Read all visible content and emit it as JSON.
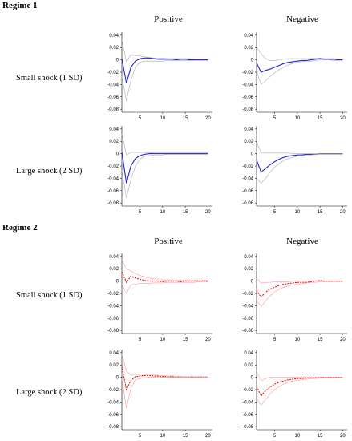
{
  "regimes": [
    {
      "label": "Regime 1"
    },
    {
      "label": "Regime 2"
    }
  ],
  "columns": [
    "Positive",
    "Negative"
  ],
  "rows": [
    "Small shock (1 SD)",
    "Large shock (2 SD)"
  ],
  "colors": {
    "regime1_line": "#2222dd",
    "regime2_line": "#ee1111",
    "band": "#aaaaaa",
    "regime2_band": "#ff9999"
  },
  "chart_data": [
    {
      "type": "line",
      "regime": "Regime 1",
      "shock": "Small shock (1 SD)",
      "column": "Positive",
      "x": [
        1,
        2,
        3,
        4,
        5,
        6,
        7,
        8,
        9,
        10,
        11,
        12,
        13,
        14,
        15,
        16,
        17,
        18,
        19,
        20
      ],
      "series": [
        {
          "values": [
            0.002,
            -0.038,
            -0.012,
            -0.002,
            0.002,
            0.003,
            0.003,
            0.002,
            0.001,
            0.001,
            0.001,
            0.001,
            0.0,
            0.001,
            0.001,
            0.0,
            0.0,
            0.0,
            0.0,
            0.0
          ]
        },
        {
          "values": [
            0.033,
            -0.003,
            0.008,
            0.007,
            0.006,
            0.005,
            0.004,
            0.003,
            0.003,
            0.003,
            0.002,
            0.002,
            0.002,
            0.002,
            0.002,
            0.002,
            0.001,
            0.001,
            0.001,
            0.001
          ]
        },
        {
          "values": [
            -0.027,
            -0.066,
            -0.033,
            -0.012,
            -0.004,
            -0.002,
            -0.002,
            -0.002,
            -0.002,
            -0.002,
            -0.001,
            -0.001,
            -0.001,
            -0.001,
            -0.001,
            -0.001,
            -0.001,
            -0.001,
            -0.001,
            -0.001
          ]
        }
      ],
      "xticks": [
        5,
        10,
        15,
        20
      ],
      "yticks": [
        0.04,
        0.02,
        0,
        -0.02,
        -0.04,
        -0.06,
        -0.08
      ],
      "xlim": [
        1,
        21
      ],
      "ylim": [
        -0.085,
        0.045
      ]
    },
    {
      "type": "line",
      "regime": "Regime 1",
      "shock": "Small shock (1 SD)",
      "column": "Negative",
      "x": [
        1,
        2,
        3,
        4,
        5,
        6,
        7,
        8,
        9,
        10,
        11,
        12,
        13,
        14,
        15,
        16,
        17,
        18,
        19,
        20
      ],
      "series": [
        {
          "values": [
            -0.005,
            -0.02,
            -0.017,
            -0.015,
            -0.012,
            -0.009,
            -0.006,
            -0.004,
            -0.003,
            -0.002,
            -0.001,
            -0.001,
            0.0,
            0.001,
            0.002,
            0.001,
            0.001,
            0.001,
            0.0,
            0.0
          ]
        },
        {
          "values": [
            0.021,
            0.01,
            0.002,
            -0.001,
            -0.001,
            0.0,
            0.001,
            0.002,
            0.002,
            0.002,
            0.002,
            0.002,
            0.002,
            0.003,
            0.003,
            0.002,
            0.002,
            0.002,
            0.001,
            0.001
          ]
        },
        {
          "values": [
            -0.018,
            -0.04,
            -0.034,
            -0.027,
            -0.021,
            -0.016,
            -0.012,
            -0.008,
            -0.006,
            -0.004,
            -0.003,
            -0.002,
            -0.002,
            -0.001,
            0.0,
            0.0,
            0.0,
            -0.001,
            -0.001,
            -0.001
          ]
        }
      ],
      "xticks": [
        5,
        10,
        15,
        20
      ],
      "yticks": [
        0.04,
        0.02,
        0,
        -0.02,
        -0.04,
        -0.06,
        -0.08
      ],
      "xlim": [
        1,
        21
      ],
      "ylim": [
        -0.085,
        0.045
      ]
    },
    {
      "type": "line",
      "regime": "Regime 1",
      "shock": "Large shock (2 SD)",
      "column": "Positive",
      "x": [
        1,
        2,
        3,
        4,
        5,
        6,
        7,
        8,
        9,
        10,
        11,
        12,
        13,
        14,
        15,
        16,
        17,
        18,
        19,
        20
      ],
      "series": [
        {
          "values": [
            0.003,
            -0.048,
            -0.02,
            -0.008,
            -0.003,
            -0.001,
            0.0,
            0.0,
            0.0,
            0.0,
            0.0,
            0.0,
            0.0,
            0.0,
            0.0,
            0.0,
            0.0,
            0.0,
            0.0,
            0.0
          ]
        },
        {
          "values": [
            0.033,
            -0.002,
            0.002,
            0.002,
            0.002,
            0.002,
            0.002,
            0.001,
            0.001,
            0.001,
            0.001,
            0.001,
            0.001,
            0.001,
            0.001,
            0.001,
            0.001,
            0.001,
            0.001,
            0.001
          ]
        },
        {
          "values": [
            -0.027,
            -0.072,
            -0.042,
            -0.02,
            -0.009,
            -0.004,
            -0.003,
            -0.002,
            -0.002,
            -0.002,
            -0.001,
            -0.001,
            -0.001,
            -0.001,
            -0.001,
            -0.001,
            -0.001,
            -0.001,
            -0.001,
            -0.001
          ]
        }
      ],
      "xticks": [
        5,
        10,
        15,
        20
      ],
      "yticks": [
        0.04,
        0.02,
        0,
        -0.02,
        -0.04,
        -0.06,
        -0.08
      ],
      "xlim": [
        1,
        21
      ],
      "ylim": [
        -0.085,
        0.045
      ]
    },
    {
      "type": "line",
      "regime": "Regime 1",
      "shock": "Large shock (2 SD)",
      "column": "Negative",
      "x": [
        1,
        2,
        3,
        4,
        5,
        6,
        7,
        8,
        9,
        10,
        11,
        12,
        13,
        14,
        15,
        16,
        17,
        18,
        19,
        20
      ],
      "series": [
        {
          "values": [
            -0.01,
            -0.03,
            -0.024,
            -0.018,
            -0.013,
            -0.009,
            -0.006,
            -0.004,
            -0.003,
            -0.002,
            -0.002,
            -0.001,
            -0.001,
            -0.001,
            0.0,
            0.0,
            0.0,
            0.0,
            0.0,
            0.0
          ]
        },
        {
          "values": [
            0.02,
            0.001,
            0.001,
            0.001,
            0.001,
            0.001,
            0.001,
            0.001,
            0.0,
            0.0,
            0.0,
            0.0,
            0.0,
            0.0,
            0.0,
            0.0,
            0.0,
            0.0,
            0.0,
            0.0
          ]
        },
        {
          "values": [
            -0.04,
            -0.048,
            -0.04,
            -0.03,
            -0.022,
            -0.016,
            -0.011,
            -0.008,
            -0.006,
            -0.004,
            -0.003,
            -0.002,
            -0.002,
            -0.001,
            -0.001,
            -0.001,
            -0.001,
            -0.001,
            -0.001,
            -0.001
          ]
        }
      ],
      "xticks": [
        5,
        10,
        15,
        20
      ],
      "yticks": [
        0.04,
        0.02,
        0,
        -0.02,
        -0.04,
        -0.06,
        -0.08
      ],
      "xlim": [
        1,
        21
      ],
      "ylim": [
        -0.085,
        0.045
      ]
    },
    {
      "type": "line",
      "regime": "Regime 2",
      "shock": "Small shock (1 SD)",
      "column": "Positive",
      "x": [
        1,
        2,
        3,
        4,
        5,
        6,
        7,
        8,
        9,
        10,
        11,
        12,
        13,
        14,
        15,
        16,
        17,
        18,
        19,
        20
      ],
      "series": [
        {
          "values": [
            0.015,
            -0.002,
            0.008,
            0.005,
            0.003,
            0.001,
            0.0,
            0.0,
            0.0,
            -0.001,
            0.0,
            0.0,
            0.0,
            -0.001,
            0.0,
            0.0,
            0.0,
            0.0,
            0.0,
            0.0
          ]
        },
        {
          "values": [
            0.035,
            0.02,
            0.016,
            0.012,
            0.009,
            0.007,
            0.005,
            0.004,
            0.003,
            0.002,
            0.002,
            0.001,
            0.001,
            0.001,
            0.001,
            0.001,
            0.001,
            0.001,
            0.001,
            0.001
          ]
        },
        {
          "values": [
            -0.005,
            -0.02,
            -0.006,
            -0.005,
            -0.004,
            -0.004,
            -0.004,
            -0.003,
            -0.003,
            -0.003,
            -0.002,
            -0.002,
            -0.002,
            -0.002,
            -0.002,
            -0.002,
            -0.002,
            -0.001,
            -0.001,
            -0.001
          ]
        }
      ],
      "xticks": [
        5,
        10,
        15,
        20
      ],
      "yticks": [
        0.04,
        0.02,
        0,
        -0.02,
        -0.04,
        -0.06,
        -0.08
      ],
      "xlim": [
        1,
        21
      ],
      "ylim": [
        -0.085,
        0.045
      ]
    },
    {
      "type": "line",
      "regime": "Regime 2",
      "shock": "Small shock (1 SD)",
      "column": "Negative",
      "x": [
        1,
        2,
        3,
        4,
        5,
        6,
        7,
        8,
        9,
        10,
        11,
        12,
        13,
        14,
        15,
        16,
        17,
        18,
        19,
        20
      ],
      "series": [
        {
          "values": [
            -0.015,
            -0.026,
            -0.018,
            -0.013,
            -0.01,
            -0.007,
            -0.005,
            -0.004,
            -0.003,
            -0.002,
            -0.002,
            -0.002,
            -0.001,
            0.0,
            0.001,
            0.0,
            0.0,
            0.0,
            0.0,
            0.0
          ]
        },
        {
          "values": [
            0.005,
            -0.003,
            -0.002,
            -0.002,
            -0.001,
            -0.001,
            -0.001,
            -0.001,
            0.0,
            0.0,
            0.0,
            0.0,
            0.0,
            0.0,
            0.0,
            0.0,
            0.0,
            0.0,
            0.0,
            0.0
          ]
        },
        {
          "values": [
            -0.03,
            -0.042,
            -0.032,
            -0.024,
            -0.018,
            -0.013,
            -0.01,
            -0.008,
            -0.006,
            -0.005,
            -0.004,
            -0.003,
            -0.002,
            -0.002,
            -0.001,
            -0.001,
            -0.001,
            -0.001,
            -0.001,
            -0.001
          ]
        }
      ],
      "xticks": [
        5,
        10,
        15,
        20
      ],
      "yticks": [
        0.04,
        0.02,
        0,
        -0.02,
        -0.04,
        -0.06,
        -0.08
      ],
      "xlim": [
        1,
        21
      ],
      "ylim": [
        -0.085,
        0.045
      ]
    },
    {
      "type": "line",
      "regime": "Regime 2",
      "shock": "Large shock (2 SD)",
      "column": "Positive",
      "x": [
        1,
        2,
        3,
        4,
        5,
        6,
        7,
        8,
        9,
        10,
        11,
        12,
        13,
        14,
        15,
        16,
        17,
        18,
        19,
        20
      ],
      "series": [
        {
          "values": [
            0.018,
            -0.02,
            -0.005,
            0.001,
            0.002,
            0.003,
            0.003,
            0.002,
            0.002,
            0.001,
            0.001,
            0.001,
            0.0,
            0.001,
            0.0,
            0.0,
            0.0,
            0.0,
            0.0,
            0.0
          ]
        },
        {
          "values": [
            0.038,
            0.01,
            0.004,
            0.004,
            0.005,
            0.005,
            0.005,
            0.004,
            0.003,
            0.003,
            0.002,
            0.002,
            0.002,
            0.001,
            0.001,
            0.001,
            0.001,
            0.001,
            0.001,
            0.001
          ]
        },
        {
          "values": [
            -0.002,
            -0.05,
            -0.018,
            -0.004,
            -0.002,
            -0.001,
            0.0,
            0.0,
            0.0,
            0.0,
            0.0,
            0.0,
            0.0,
            0.0,
            0.0,
            0.0,
            0.0,
            0.0,
            0.0,
            0.0
          ]
        }
      ],
      "xticks": [
        5,
        10,
        15,
        20
      ],
      "yticks": [
        0.04,
        0.02,
        0,
        -0.02,
        -0.04,
        -0.06,
        -0.08
      ],
      "xlim": [
        1,
        21
      ],
      "ylim": [
        -0.085,
        0.045
      ]
    },
    {
      "type": "line",
      "regime": "Regime 2",
      "shock": "Large shock (2 SD)",
      "column": "Negative",
      "x": [
        1,
        2,
        3,
        4,
        5,
        6,
        7,
        8,
        9,
        10,
        11,
        12,
        13,
        14,
        15,
        16,
        17,
        18,
        19,
        20
      ],
      "series": [
        {
          "values": [
            -0.015,
            -0.03,
            -0.022,
            -0.016,
            -0.011,
            -0.008,
            -0.006,
            -0.004,
            -0.003,
            -0.002,
            -0.002,
            -0.001,
            -0.001,
            -0.001,
            0.0,
            0.0,
            0.0,
            0.0,
            0.0,
            0.0
          ]
        },
        {
          "values": [
            0.01,
            -0.005,
            -0.002,
            0.0,
            0.0,
            0.0,
            0.0,
            0.0,
            0.0,
            0.0,
            0.0,
            0.0,
            0.0,
            0.0,
            0.0,
            0.0,
            0.0,
            0.0,
            0.0,
            0.0
          ]
        },
        {
          "values": [
            -0.033,
            -0.045,
            -0.036,
            -0.027,
            -0.02,
            -0.015,
            -0.011,
            -0.008,
            -0.006,
            -0.005,
            -0.004,
            -0.003,
            -0.002,
            -0.002,
            -0.001,
            -0.001,
            -0.001,
            -0.001,
            -0.001,
            -0.001
          ]
        }
      ],
      "xticks": [
        5,
        10,
        15,
        20
      ],
      "yticks": [
        0.04,
        0.02,
        0,
        -0.02,
        -0.04,
        -0.06,
        -0.08
      ],
      "xlim": [
        1,
        21
      ],
      "ylim": [
        -0.085,
        0.045
      ]
    }
  ]
}
